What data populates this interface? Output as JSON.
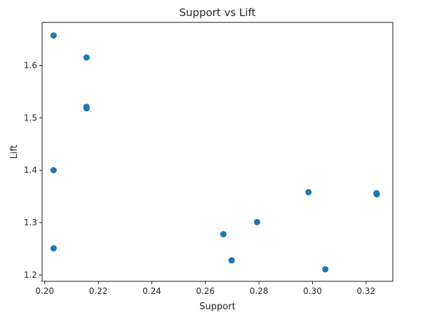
{
  "chart_data": {
    "type": "scatter",
    "title": "Support vs Lift",
    "xlabel": "Support",
    "ylabel": "Lift",
    "xlim": [
      0.199,
      0.33
    ],
    "ylim": [
      1.188,
      1.682
    ],
    "xticks": [
      0.2,
      0.22,
      0.24,
      0.26,
      0.28,
      0.3,
      0.32
    ],
    "xtick_labels": [
      "0.20",
      "0.22",
      "0.24",
      "0.26",
      "0.28",
      "0.30",
      "0.32"
    ],
    "yticks": [
      1.2,
      1.3,
      1.4,
      1.5,
      1.6
    ],
    "ytick_labels": [
      "1.2",
      "1.3",
      "1.4",
      "1.5",
      "1.6"
    ],
    "grid": false,
    "marker_color": "#1f77b4",
    "points": [
      {
        "x": 0.2033,
        "y": 1.657
      },
      {
        "x": 0.2156,
        "y": 1.615
      },
      {
        "x": 0.2156,
        "y": 1.521
      },
      {
        "x": 0.2156,
        "y": 1.518
      },
      {
        "x": 0.2033,
        "y": 1.4
      },
      {
        "x": 0.2033,
        "y": 1.251
      },
      {
        "x": 0.2667,
        "y": 1.278
      },
      {
        "x": 0.2698,
        "y": 1.228
      },
      {
        "x": 0.2793,
        "y": 1.301
      },
      {
        "x": 0.2985,
        "y": 1.358
      },
      {
        "x": 0.3048,
        "y": 1.211
      },
      {
        "x": 0.3239,
        "y": 1.356
      },
      {
        "x": 0.324,
        "y": 1.354
      }
    ]
  }
}
